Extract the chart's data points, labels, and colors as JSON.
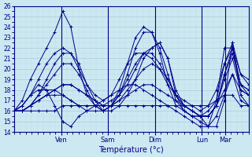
{
  "xlabel": "Température (°c)",
  "bg_color": "#cce8f0",
  "plot_bg_color": "#cce8f0",
  "grid_color_major": "#aaccdd",
  "grid_color_minor": "#bbddee",
  "line_color": "#00008b",
  "ylim": [
    14,
    26
  ],
  "yticks": [
    14,
    15,
    16,
    17,
    18,
    19,
    20,
    21,
    22,
    23,
    24,
    25,
    26
  ],
  "xlim": [
    0,
    120
  ],
  "day_ticks": [
    24,
    48,
    72,
    96,
    108
  ],
  "day_labels": [
    "Ven",
    "Sam",
    "Dim",
    "Lun",
    "Mar"
  ],
  "series": [
    [
      16.0,
      17.0,
      19.0,
      20.5,
      22.0,
      23.5,
      25.5,
      24.0,
      20.0,
      17.5,
      16.5,
      16.0,
      16.0,
      16.5,
      17.5,
      19.0,
      21.0,
      22.0,
      22.5,
      21.0,
      17.5,
      16.0,
      15.5,
      15.0,
      14.5,
      17.0,
      22.0,
      22.0,
      19.5,
      18.5
    ],
    [
      16.0,
      16.5,
      17.5,
      18.5,
      18.0,
      16.5,
      15.0,
      14.5,
      15.5,
      16.0,
      16.5,
      17.0,
      17.5,
      18.0,
      18.5,
      18.5,
      18.0,
      17.5,
      17.0,
      16.5,
      16.0,
      15.5,
      15.0,
      14.5,
      14.5,
      15.5,
      17.5,
      19.5,
      17.0,
      16.5
    ],
    [
      16.0,
      16.0,
      16.5,
      17.0,
      17.5,
      17.5,
      17.5,
      17.0,
      16.5,
      16.0,
      16.0,
      16.0,
      16.5,
      17.0,
      17.5,
      18.0,
      18.5,
      18.5,
      18.0,
      17.5,
      17.0,
      16.5,
      16.0,
      15.5,
      15.5,
      16.5,
      18.0,
      19.5,
      18.0,
      17.5
    ],
    [
      16.0,
      16.0,
      16.5,
      17.0,
      17.5,
      18.0,
      18.5,
      18.5,
      18.0,
      17.5,
      17.0,
      16.5,
      16.5,
      17.0,
      18.0,
      19.0,
      20.0,
      20.5,
      20.0,
      19.0,
      17.5,
      16.5,
      16.0,
      15.5,
      15.5,
      16.5,
      19.0,
      21.0,
      18.0,
      17.5
    ],
    [
      16.0,
      16.0,
      16.5,
      17.0,
      17.5,
      18.0,
      18.5,
      18.5,
      18.0,
      17.5,
      17.0,
      16.5,
      16.5,
      17.5,
      19.0,
      20.5,
      21.5,
      21.5,
      20.5,
      19.0,
      17.5,
      16.5,
      16.0,
      15.5,
      15.5,
      16.5,
      19.5,
      21.5,
      18.5,
      17.5
    ],
    [
      16.0,
      16.0,
      16.5,
      17.5,
      18.5,
      19.5,
      20.5,
      20.5,
      19.5,
      18.0,
      16.5,
      16.0,
      16.5,
      17.5,
      19.5,
      22.0,
      23.5,
      23.5,
      22.0,
      19.5,
      17.0,
      16.0,
      15.5,
      15.5,
      15.5,
      16.5,
      19.5,
      22.0,
      18.5,
      18.0
    ],
    [
      16.0,
      16.0,
      16.5,
      17.5,
      19.0,
      20.5,
      21.5,
      21.5,
      20.5,
      18.5,
      17.0,
      16.0,
      16.5,
      18.0,
      20.5,
      23.0,
      24.0,
      23.5,
      21.5,
      18.5,
      16.5,
      16.0,
      15.5,
      15.5,
      16.0,
      17.0,
      20.5,
      22.0,
      18.5,
      18.0
    ],
    [
      16.0,
      16.5,
      17.5,
      19.0,
      20.5,
      21.5,
      22.0,
      21.5,
      20.0,
      18.5,
      17.5,
      17.0,
      17.5,
      19.0,
      20.5,
      21.5,
      21.5,
      21.0,
      20.0,
      18.5,
      17.5,
      17.0,
      16.5,
      16.0,
      16.5,
      18.0,
      20.5,
      22.5,
      19.5,
      19.0
    ],
    [
      16.0,
      16.5,
      17.5,
      18.0,
      18.0,
      18.0,
      17.5,
      17.0,
      16.5,
      16.5,
      16.5,
      16.5,
      17.0,
      17.5,
      18.5,
      20.0,
      21.5,
      22.0,
      22.5,
      21.0,
      18.0,
      16.5,
      16.0,
      15.5,
      14.5,
      14.5,
      17.0,
      22.5,
      17.5,
      16.5
    ],
    [
      16.0,
      16.0,
      16.0,
      16.0,
      16.0,
      16.0,
      16.5,
      16.5,
      16.5,
      16.5,
      16.5,
      16.5,
      16.5,
      16.5,
      16.5,
      16.5,
      16.5,
      16.5,
      16.5,
      16.5,
      16.5,
      16.5,
      16.5,
      16.5,
      16.5,
      17.0,
      17.5,
      17.5,
      16.5,
      16.5
    ]
  ]
}
